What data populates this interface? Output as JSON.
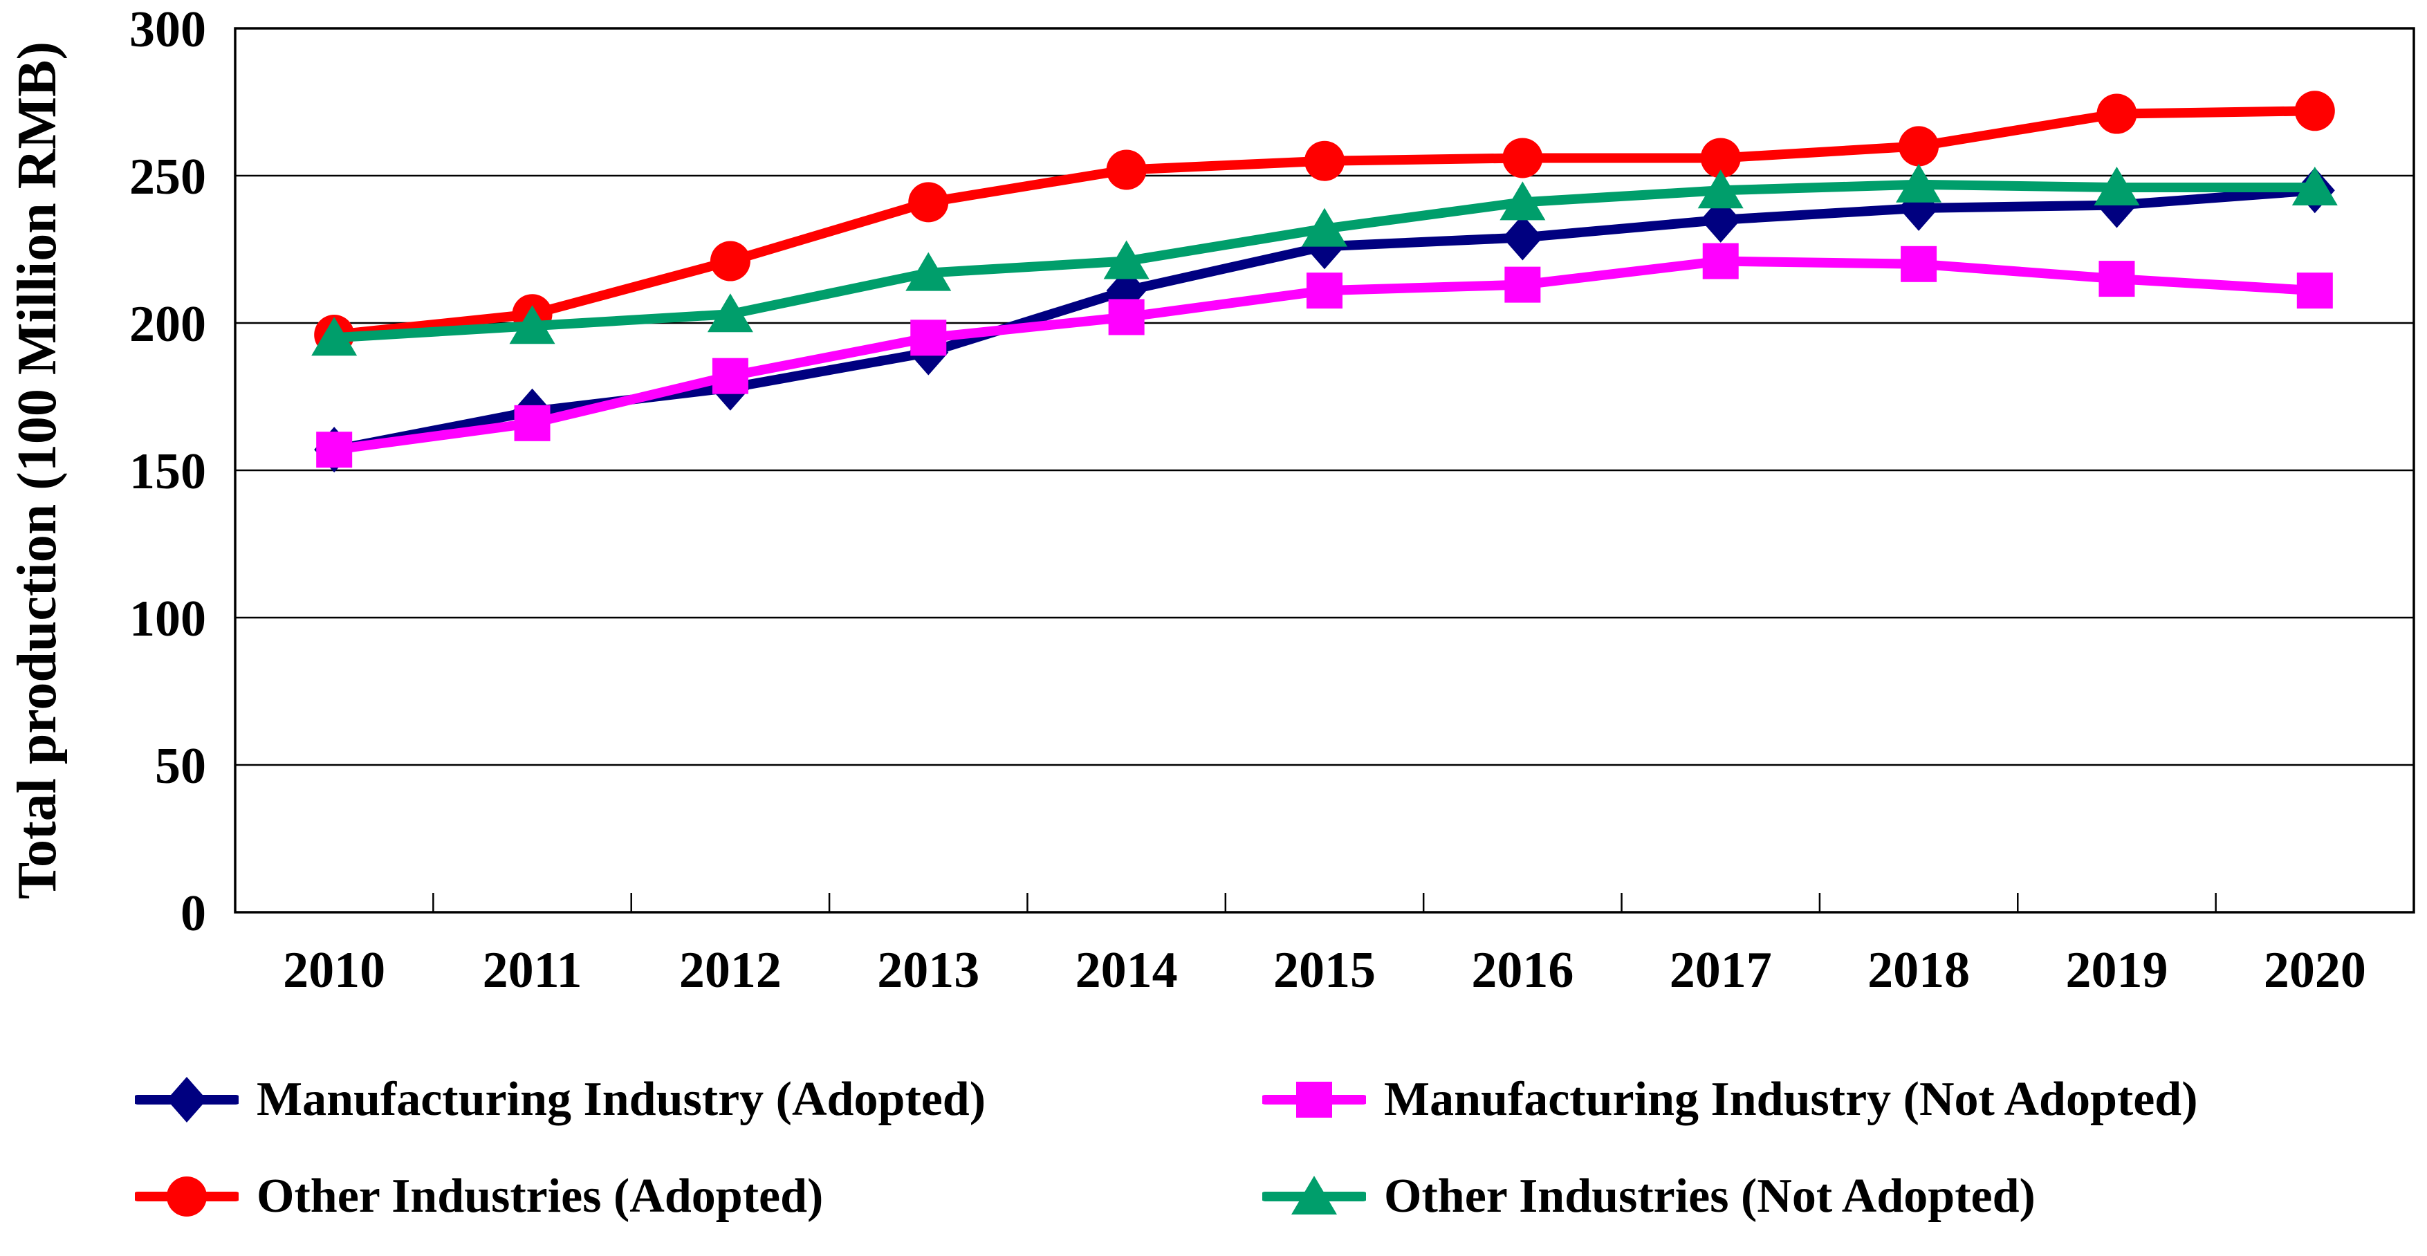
{
  "chart_data": {
    "type": "line",
    "title": "",
    "ylabel": "Total production (100 Million RMB)",
    "xlabel": "",
    "ylim": [
      0,
      300
    ],
    "y_ticks": [
      0,
      50,
      100,
      150,
      200,
      250,
      300
    ],
    "grid": "horizontal-solid",
    "legend_position": "bottom-two-columns",
    "background": "#FFFFFF",
    "axis_color": "#000000",
    "categories": [
      "2010",
      "2011",
      "2012",
      "2013",
      "2014",
      "2015",
      "2016",
      "2017",
      "2018",
      "2019",
      "2020"
    ],
    "series": [
      {
        "name": "Manufacturing Industry (Adopted)",
        "marker": "diamond",
        "color": "#000080",
        "values": [
          157,
          170,
          178,
          190,
          211,
          226,
          229,
          235,
          239,
          240,
          245
        ]
      },
      {
        "name": "Manufacturing Industry (Not Adopted)",
        "marker": "square",
        "color": "#FF00FF",
        "values": [
          157,
          166,
          182,
          195,
          202,
          211,
          213,
          221,
          220,
          215,
          211
        ]
      },
      {
        "name": "Other Industries (Adopted)",
        "marker": "circle",
        "color": "#FF0000",
        "values": [
          196,
          203,
          221,
          241,
          252,
          255,
          256,
          256,
          260,
          271,
          272
        ]
      },
      {
        "name": "Other Industries (Not Adopted)",
        "marker": "triangle",
        "color": "#009E6B",
        "values": [
          195,
          199,
          203,
          217,
          221,
          232,
          241,
          245,
          247,
          246,
          246
        ]
      }
    ]
  }
}
